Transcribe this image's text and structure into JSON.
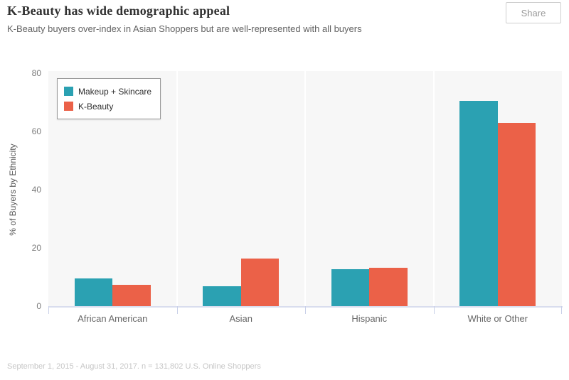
{
  "header": {
    "title": "K-Beauty has wide demographic appeal",
    "subtitle": "K-Beauty buyers over-index in Asian Shoppers but are well-represented with all buyers",
    "share_label": "Share"
  },
  "footer": {
    "source": "September 1, 2015 - August 31, 2017. n = 131,802 U.S. Online Shoppers"
  },
  "chart_data": {
    "type": "bar",
    "title": "K-Beauty has wide demographic appeal",
    "categories": [
      "African American",
      "Asian",
      "Hispanic",
      "White or Other"
    ],
    "series": [
      {
        "name": "Makeup + Skincare",
        "color": "#2BA1B2",
        "values": [
          9.5,
          6.8,
          12.6,
          70.4
        ]
      },
      {
        "name": "K-Beauty",
        "color": "#EB6148",
        "values": [
          7.3,
          16.4,
          13.1,
          63.0
        ]
      }
    ],
    "xlabel": "",
    "ylabel": "% of Buyers by Ethnicity",
    "yticks": [
      0,
      20,
      40,
      60,
      80
    ],
    "ylim": [
      0,
      80
    ],
    "grid": false,
    "legend_position": "top-left",
    "colors": {
      "plot_bg": "#f7f7f7",
      "panel_separator": "#ffffff",
      "axis_line": "#d9ddee",
      "tick_mark": "#c9d0e8"
    }
  }
}
